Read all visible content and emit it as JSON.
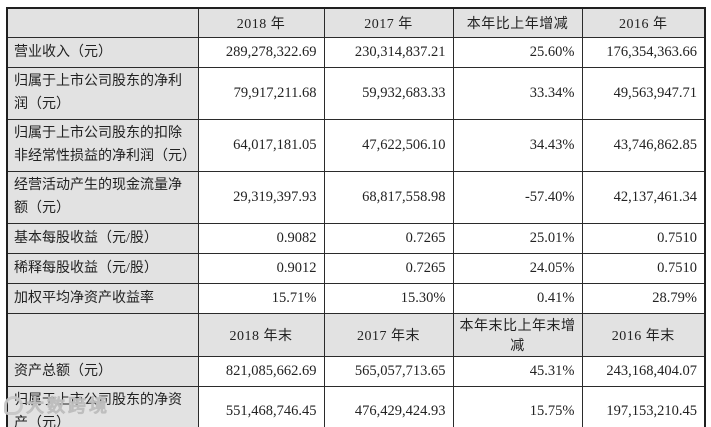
{
  "annual": {
    "headers": [
      "2018 年",
      "2017 年",
      "本年比上年增减",
      "2016 年"
    ],
    "rows": [
      {
        "label": "营业收入（元）",
        "v2018": "289,278,322.69",
        "v2017": "230,314,837.21",
        "change": "25.60%",
        "v2016": "176,354,363.66"
      },
      {
        "label": "归属于上市公司股东的净利润（元）",
        "v2018": "79,917,211.68",
        "v2017": "59,932,683.33",
        "change": "33.34%",
        "v2016": "49,563,947.71"
      },
      {
        "label": "归属于上市公司股东的扣除非经常性损益的净利润（元）",
        "v2018": "64,017,181.05",
        "v2017": "47,622,506.10",
        "change": "34.43%",
        "v2016": "43,746,862.85"
      },
      {
        "label": "经营活动产生的现金流量净额（元）",
        "v2018": "29,319,397.93",
        "v2017": "68,817,558.98",
        "change": "-57.40%",
        "v2016": "42,137,461.34"
      },
      {
        "label": "基本每股收益（元/股）",
        "v2018": "0.9082",
        "v2017": "0.7265",
        "change": "25.01%",
        "v2016": "0.7510"
      },
      {
        "label": "稀释每股收益（元/股）",
        "v2018": "0.9012",
        "v2017": "0.7265",
        "change": "24.05%",
        "v2016": "0.7510"
      },
      {
        "label": "加权平均净资产收益率",
        "v2018": "15.71%",
        "v2017": "15.30%",
        "change": "0.41%",
        "v2016": "28.79%"
      }
    ]
  },
  "year_end": {
    "headers": [
      "2018 年末",
      "2017 年末",
      "本年末比上年末增减",
      "2016 年末"
    ],
    "rows": [
      {
        "label": "资产总额（元）",
        "v2018": "821,085,662.69",
        "v2017": "565,057,713.65",
        "change": "45.31%",
        "v2016": "243,168,404.07"
      },
      {
        "label": "归属于上市公司股东的净资产（元）",
        "v2018": "551,468,746.45",
        "v2017": "476,429,424.93",
        "change": "15.75%",
        "v2016": "197,153,210.45"
      }
    ]
  },
  "watermark": {
    "brand": "大数跨境"
  },
  "colors": {
    "cell_gray": "#e2e2e2",
    "border": "#2b2b2b",
    "text": "#222222",
    "watermark_gray": "#c7c7c7"
  }
}
